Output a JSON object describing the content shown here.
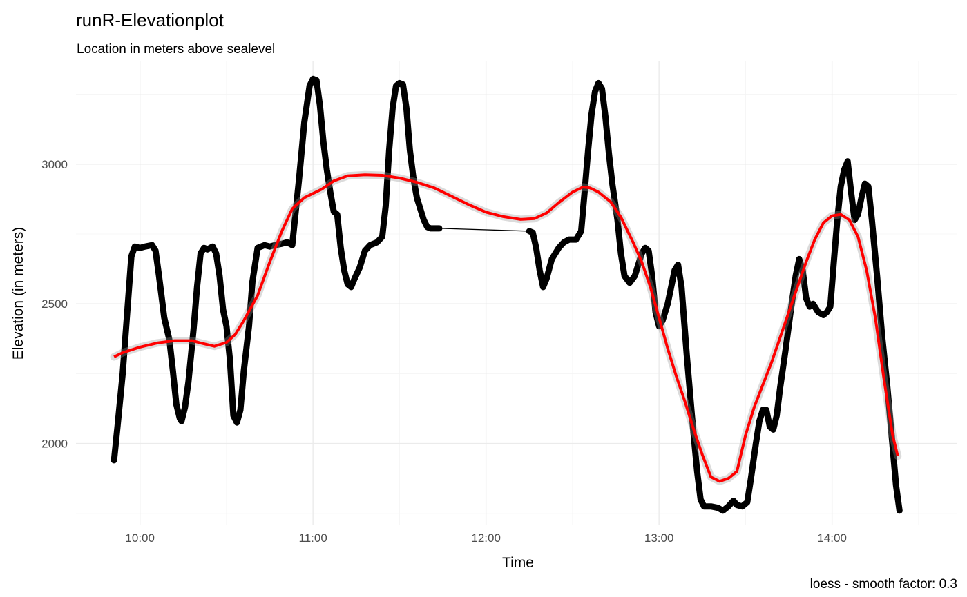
{
  "chart_data": {
    "type": "line",
    "title": "runR-Elevationplot",
    "subtitle": "Location in meters above sealevel",
    "xlabel": "Time",
    "ylabel": "Elevation (in meters)",
    "caption": "loess - smooth factor: 0.3",
    "x_unit": "time of day (hours)",
    "xlim": [
      9.63,
      14.72
    ],
    "ylim": [
      1710,
      3370
    ],
    "x_ticks": [
      {
        "value": 10,
        "label": "10:00"
      },
      {
        "value": 11,
        "label": "11:00"
      },
      {
        "value": 12,
        "label": "12:00"
      },
      {
        "value": 13,
        "label": "13:00"
      },
      {
        "value": 14,
        "label": "14:00"
      }
    ],
    "y_ticks": [
      {
        "value": 2000,
        "label": "2000"
      },
      {
        "value": 2500,
        "label": "2500"
      },
      {
        "value": 3000,
        "label": "3000"
      }
    ],
    "grid": true,
    "series": [
      {
        "role": "elevation",
        "color": "#000000",
        "points": [
          [
            9.85,
            1940
          ],
          [
            9.87,
            2060
          ],
          [
            9.9,
            2250
          ],
          [
            9.93,
            2500
          ],
          [
            9.95,
            2670
          ],
          [
            9.97,
            2705
          ],
          [
            10.0,
            2700
          ],
          [
            10.03,
            2705
          ],
          [
            10.07,
            2710
          ],
          [
            10.09,
            2690
          ],
          [
            10.11,
            2600
          ],
          [
            10.14,
            2450
          ],
          [
            10.17,
            2370
          ],
          [
            10.19,
            2260
          ],
          [
            10.21,
            2140
          ],
          [
            10.23,
            2090
          ],
          [
            10.24,
            2080
          ],
          [
            10.26,
            2130
          ],
          [
            10.28,
            2220
          ],
          [
            10.31,
            2410
          ],
          [
            10.33,
            2560
          ],
          [
            10.35,
            2680
          ],
          [
            10.37,
            2700
          ],
          [
            10.39,
            2695
          ],
          [
            10.42,
            2705
          ],
          [
            10.44,
            2680
          ],
          [
            10.46,
            2600
          ],
          [
            10.48,
            2480
          ],
          [
            10.5,
            2420
          ],
          [
            10.52,
            2300
          ],
          [
            10.54,
            2100
          ],
          [
            10.56,
            2075
          ],
          [
            10.58,
            2120
          ],
          [
            10.6,
            2260
          ],
          [
            10.63,
            2420
          ],
          [
            10.65,
            2580
          ],
          [
            10.68,
            2700
          ],
          [
            10.72,
            2710
          ],
          [
            10.75,
            2705
          ],
          [
            10.78,
            2710
          ],
          [
            10.82,
            2715
          ],
          [
            10.85,
            2720
          ],
          [
            10.88,
            2710
          ],
          [
            10.92,
            2950
          ],
          [
            10.95,
            3150
          ],
          [
            10.98,
            3280
          ],
          [
            11.0,
            3305
          ],
          [
            11.02,
            3300
          ],
          [
            11.04,
            3210
          ],
          [
            11.06,
            3080
          ],
          [
            11.08,
            2980
          ],
          [
            11.1,
            2900
          ],
          [
            11.12,
            2830
          ],
          [
            11.14,
            2820
          ],
          [
            11.16,
            2700
          ],
          [
            11.18,
            2620
          ],
          [
            11.2,
            2570
          ],
          [
            11.22,
            2560
          ],
          [
            11.24,
            2590
          ],
          [
            11.27,
            2630
          ],
          [
            11.3,
            2690
          ],
          [
            11.33,
            2710
          ],
          [
            11.37,
            2720
          ],
          [
            11.4,
            2740
          ],
          [
            11.42,
            2850
          ],
          [
            11.44,
            3050
          ],
          [
            11.46,
            3200
          ],
          [
            11.48,
            3280
          ],
          [
            11.5,
            3290
          ],
          [
            11.52,
            3285
          ],
          [
            11.54,
            3200
          ],
          [
            11.56,
            3050
          ],
          [
            11.58,
            2950
          ],
          [
            11.6,
            2880
          ],
          [
            11.62,
            2840
          ],
          [
            11.64,
            2800
          ],
          [
            11.66,
            2775
          ],
          [
            11.68,
            2770
          ],
          [
            11.7,
            2770
          ],
          [
            11.73,
            2770
          ],
          [
            12.25,
            2760
          ],
          [
            12.27,
            2755
          ],
          [
            12.29,
            2700
          ],
          [
            12.31,
            2620
          ],
          [
            12.33,
            2560
          ],
          [
            12.35,
            2590
          ],
          [
            12.38,
            2660
          ],
          [
            12.42,
            2700
          ],
          [
            12.45,
            2720
          ],
          [
            12.48,
            2730
          ],
          [
            12.52,
            2730
          ],
          [
            12.55,
            2760
          ],
          [
            12.57,
            2900
          ],
          [
            12.59,
            3050
          ],
          [
            12.61,
            3180
          ],
          [
            12.63,
            3260
          ],
          [
            12.65,
            3290
          ],
          [
            12.67,
            3270
          ],
          [
            12.69,
            3170
          ],
          [
            12.71,
            3040
          ],
          [
            12.73,
            2930
          ],
          [
            12.76,
            2800
          ],
          [
            12.78,
            2680
          ],
          [
            12.8,
            2600
          ],
          [
            12.83,
            2575
          ],
          [
            12.86,
            2600
          ],
          [
            12.88,
            2640
          ],
          [
            12.9,
            2680
          ],
          [
            12.92,
            2700
          ],
          [
            12.94,
            2690
          ],
          [
            12.96,
            2600
          ],
          [
            12.98,
            2470
          ],
          [
            13.0,
            2420
          ],
          [
            13.02,
            2440
          ],
          [
            13.05,
            2500
          ],
          [
            13.07,
            2560
          ],
          [
            13.09,
            2620
          ],
          [
            13.11,
            2640
          ],
          [
            13.13,
            2560
          ],
          [
            13.16,
            2320
          ],
          [
            13.19,
            2100
          ],
          [
            13.22,
            1900
          ],
          [
            13.24,
            1800
          ],
          [
            13.26,
            1775
          ],
          [
            13.3,
            1775
          ],
          [
            13.34,
            1770
          ],
          [
            13.37,
            1760
          ],
          [
            13.4,
            1775
          ],
          [
            13.43,
            1795
          ],
          [
            13.45,
            1780
          ],
          [
            13.48,
            1775
          ],
          [
            13.51,
            1790
          ],
          [
            13.53,
            1870
          ],
          [
            13.56,
            2000
          ],
          [
            13.58,
            2080
          ],
          [
            13.6,
            2120
          ],
          [
            13.62,
            2120
          ],
          [
            13.64,
            2060
          ],
          [
            13.66,
            2050
          ],
          [
            13.68,
            2100
          ],
          [
            13.7,
            2200
          ],
          [
            13.73,
            2330
          ],
          [
            13.76,
            2470
          ],
          [
            13.79,
            2600
          ],
          [
            13.81,
            2660
          ],
          [
            13.83,
            2620
          ],
          [
            13.85,
            2520
          ],
          [
            13.87,
            2490
          ],
          [
            13.89,
            2500
          ],
          [
            13.92,
            2470
          ],
          [
            13.95,
            2460
          ],
          [
            13.97,
            2470
          ],
          [
            13.99,
            2490
          ],
          [
            14.01,
            2650
          ],
          [
            14.03,
            2800
          ],
          [
            14.05,
            2920
          ],
          [
            14.07,
            2980
          ],
          [
            14.09,
            3010
          ],
          [
            14.11,
            2900
          ],
          [
            14.13,
            2800
          ],
          [
            14.15,
            2820
          ],
          [
            14.17,
            2880
          ],
          [
            14.19,
            2930
          ],
          [
            14.21,
            2920
          ],
          [
            14.23,
            2800
          ],
          [
            14.26,
            2600
          ],
          [
            14.29,
            2380
          ],
          [
            14.32,
            2200
          ],
          [
            14.35,
            1990
          ],
          [
            14.37,
            1850
          ],
          [
            14.39,
            1760
          ]
        ]
      },
      {
        "role": "loess-smooth",
        "color": "#ff0000",
        "points": [
          [
            9.85,
            2310
          ],
          [
            9.9,
            2325
          ],
          [
            10.0,
            2345
          ],
          [
            10.1,
            2360
          ],
          [
            10.2,
            2368
          ],
          [
            10.3,
            2368
          ],
          [
            10.35,
            2360
          ],
          [
            10.43,
            2348
          ],
          [
            10.5,
            2362
          ],
          [
            10.55,
            2390
          ],
          [
            10.6,
            2440
          ],
          [
            10.68,
            2530
          ],
          [
            10.75,
            2650
          ],
          [
            10.82,
            2760
          ],
          [
            10.88,
            2840
          ],
          [
            10.95,
            2880
          ],
          [
            11.05,
            2910
          ],
          [
            11.12,
            2940
          ],
          [
            11.2,
            2958
          ],
          [
            11.3,
            2962
          ],
          [
            11.4,
            2960
          ],
          [
            11.5,
            2950
          ],
          [
            11.6,
            2935
          ],
          [
            11.7,
            2915
          ],
          [
            11.8,
            2885
          ],
          [
            11.9,
            2855
          ],
          [
            12.0,
            2828
          ],
          [
            12.1,
            2812
          ],
          [
            12.2,
            2802
          ],
          [
            12.28,
            2805
          ],
          [
            12.35,
            2825
          ],
          [
            12.42,
            2862
          ],
          [
            12.5,
            2900
          ],
          [
            12.56,
            2918
          ],
          [
            12.6,
            2915
          ],
          [
            12.65,
            2900
          ],
          [
            12.72,
            2865
          ],
          [
            12.78,
            2810
          ],
          [
            12.85,
            2720
          ],
          [
            12.9,
            2650
          ],
          [
            12.95,
            2560
          ],
          [
            13.0,
            2450
          ],
          [
            13.05,
            2340
          ],
          [
            13.1,
            2240
          ],
          [
            13.15,
            2150
          ],
          [
            13.2,
            2050
          ],
          [
            13.25,
            1960
          ],
          [
            13.3,
            1880
          ],
          [
            13.35,
            1865
          ],
          [
            13.4,
            1875
          ],
          [
            13.45,
            1900
          ],
          [
            13.5,
            2030
          ],
          [
            13.55,
            2130
          ],
          [
            13.6,
            2210
          ],
          [
            13.65,
            2290
          ],
          [
            13.7,
            2380
          ],
          [
            13.75,
            2470
          ],
          [
            13.8,
            2560
          ],
          [
            13.85,
            2650
          ],
          [
            13.9,
            2730
          ],
          [
            13.95,
            2790
          ],
          [
            14.0,
            2815
          ],
          [
            14.05,
            2820
          ],
          [
            14.1,
            2800
          ],
          [
            14.15,
            2740
          ],
          [
            14.2,
            2620
          ],
          [
            14.25,
            2450
          ],
          [
            14.3,
            2230
          ],
          [
            14.35,
            2030
          ],
          [
            14.38,
            1955
          ]
        ]
      }
    ]
  }
}
